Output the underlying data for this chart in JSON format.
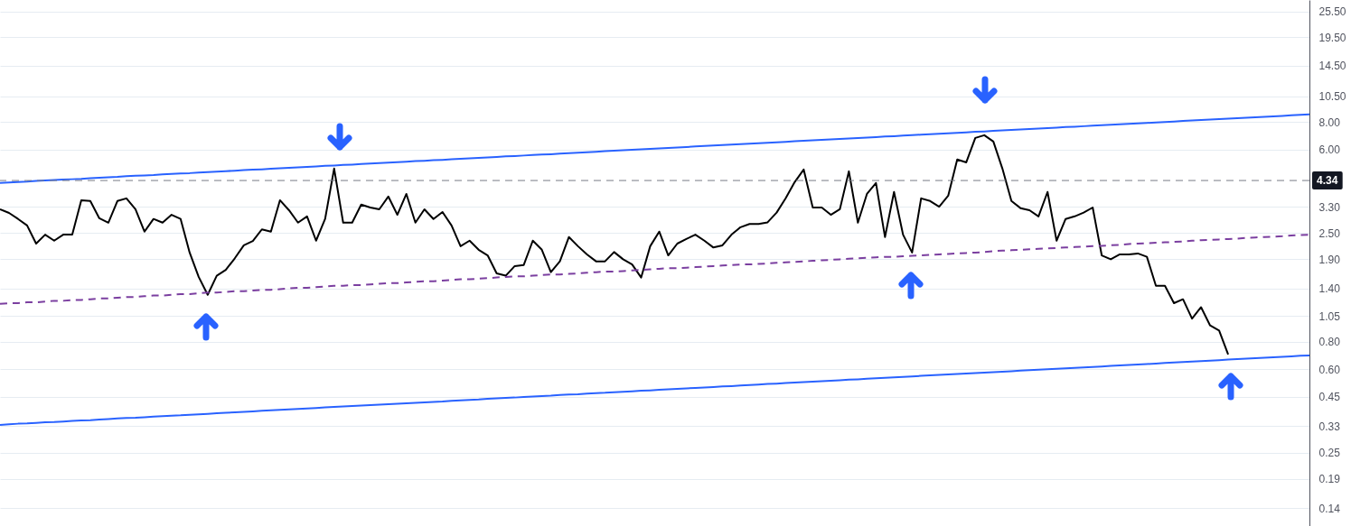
{
  "chart_data": {
    "type": "line",
    "log": "y",
    "grid": "y",
    "tick_labels": "y",
    "categories": [
      null,
      null,
      null,
      null,
      null,
      null,
      null,
      null,
      null,
      null,
      null,
      null,
      null,
      null,
      null,
      null,
      null,
      null,
      null,
      null,
      null,
      null,
      null,
      null,
      null,
      null,
      null,
      null,
      null,
      null,
      null,
      null,
      null,
      null,
      null,
      null,
      null,
      null,
      null,
      null,
      null,
      null,
      null,
      null,
      null,
      null,
      null,
      null,
      null,
      null,
      null,
      null,
      null,
      null,
      null,
      null,
      null,
      null,
      null,
      null,
      null,
      null,
      null,
      null,
      null,
      null,
      null,
      null,
      null,
      null,
      null,
      null,
      null,
      null,
      null,
      null,
      null,
      null,
      null,
      null,
      null,
      null,
      null,
      null,
      null,
      null,
      null,
      null,
      null,
      null,
      null,
      null,
      null,
      null,
      null,
      null,
      null,
      null,
      null,
      null,
      null,
      null,
      null,
      null,
      null,
      null,
      null,
      null,
      null,
      null,
      null,
      null,
      null,
      null,
      null,
      null,
      null,
      null,
      null,
      null,
      null,
      null,
      null,
      null,
      null,
      null,
      null,
      null,
      null,
      null,
      null,
      null,
      null,
      null,
      null,
      null,
      null,
      null,
      null,
      null,
      null,
      null,
      null,
      null,
      null,
      null
    ],
    "ylim": [
      0.116,
      28.8
    ],
    "yticks": [
      {
        "value": 25.5,
        "label": "25.50"
      },
      {
        "value": 19.5,
        "label": "19.50"
      },
      {
        "value": 14.5,
        "label": "14.50"
      },
      {
        "value": 10.5,
        "label": "10.50"
      },
      {
        "value": 8,
        "label": "8.00"
      },
      {
        "value": 6,
        "label": "6.00"
      },
      {
        "value": 3.3,
        "label": "3.30"
      },
      {
        "value": 2.5,
        "label": "2.50"
      },
      {
        "value": 1.9,
        "label": "1.90"
      },
      {
        "value": 1.4,
        "label": "1.40"
      },
      {
        "value": 1.05,
        "label": "1.05"
      },
      {
        "value": 0.8,
        "label": "0.80"
      },
      {
        "value": 0.6,
        "label": "0.60"
      },
      {
        "value": 0.45,
        "label": "0.45"
      },
      {
        "value": 0.33,
        "label": "0.33"
      },
      {
        "value": 0.25,
        "label": "0.25"
      },
      {
        "value": 0.19,
        "label": "0.19"
      },
      {
        "value": 0.14,
        "label": "0.14"
      }
    ],
    "series": [
      {
        "color": "#000000",
        "line_style": "solid",
        "values": [
          3.21,
          3.09,
          2.9,
          2.71,
          2.24,
          2.46,
          2.31,
          2.46,
          2.46,
          3.53,
          3.5,
          2.92,
          2.79,
          3.5,
          3.6,
          3.21,
          2.54,
          2.9,
          2.79,
          3.03,
          2.9,
          2.04,
          1.58,
          1.31,
          1.6,
          1.7,
          1.92,
          2.2,
          2.3,
          2.6,
          2.54,
          3.53,
          3.18,
          2.79,
          2.98,
          2.31,
          2.9,
          4.92,
          2.79,
          2.79,
          3.37,
          3.27,
          3.21,
          3.67,
          3.03,
          3.77,
          2.79,
          3.21,
          2.9,
          3.12,
          2.71,
          2.18,
          2.31,
          2.1,
          1.98,
          1.64,
          1.6,
          1.77,
          1.79,
          2.31,
          2.1,
          1.66,
          1.86,
          2.4,
          2.18,
          2.0,
          1.86,
          1.86,
          2.05,
          1.9,
          1.8,
          1.57,
          2.18,
          2.54,
          1.98,
          2.24,
          2.35,
          2.46,
          2.31,
          2.15,
          2.2,
          2.46,
          2.66,
          2.75,
          2.75,
          2.8,
          3.1,
          3.6,
          4.27,
          4.87,
          3.27,
          3.27,
          3.03,
          3.21,
          4.78,
          2.79,
          3.77,
          4.23,
          2.4,
          3.85,
          2.46,
          2.04,
          3.6,
          3.5,
          3.3,
          3.7,
          5.41,
          5.25,
          6.78,
          6.98,
          6.53,
          4.92,
          3.5,
          3.25,
          3.18,
          2.98,
          3.85,
          2.31,
          2.9,
          2.98,
          3.1,
          3.27,
          1.98,
          1.9,
          2.0,
          2.0,
          2.02,
          1.95,
          1.44,
          1.44,
          1.2,
          1.25,
          1.02,
          1.15,
          0.95,
          0.9,
          0.7,
          null,
          null,
          null,
          null,
          null,
          null,
          null,
          null,
          null
        ]
      },
      {
        "color": "#2962ff",
        "line_style": "solid",
        "values": [
          4.23,
          4.25,
          4.27,
          4.29,
          4.32,
          4.34,
          4.36,
          4.38,
          4.4,
          4.42,
          4.45,
          4.47,
          4.49,
          4.51,
          4.54,
          4.56,
          4.58,
          4.6,
          4.63,
          4.65,
          4.67,
          4.69,
          4.72,
          4.74,
          4.76,
          4.79,
          4.81,
          4.84,
          4.86,
          4.88,
          4.91,
          4.93,
          4.96,
          4.98,
          5.01,
          5.03,
          5.06,
          5.08,
          5.11,
          5.13,
          5.16,
          5.18,
          5.21,
          5.24,
          5.26,
          5.29,
          5.32,
          5.34,
          5.37,
          5.39,
          5.42,
          5.45,
          5.47,
          5.5,
          5.53,
          5.56,
          5.59,
          5.61,
          5.64,
          5.67,
          5.7,
          5.72,
          5.75,
          5.78,
          5.81,
          5.84,
          5.87,
          5.9,
          5.93,
          5.96,
          5.99,
          6.02,
          6.05,
          6.08,
          6.11,
          6.14,
          6.17,
          6.2,
          6.23,
          6.26,
          6.29,
          6.32,
          6.35,
          6.39,
          6.42,
          6.45,
          6.48,
          6.51,
          6.55,
          6.58,
          6.61,
          6.64,
          6.68,
          6.71,
          6.74,
          6.78,
          6.81,
          6.84,
          6.88,
          6.91,
          6.95,
          6.98,
          7.02,
          7.05,
          7.09,
          7.12,
          7.16,
          7.19,
          7.23,
          7.26,
          7.3,
          7.34,
          7.37,
          7.41,
          7.45,
          7.48,
          7.52,
          7.56,
          7.6,
          7.63,
          7.67,
          7.71,
          7.75,
          7.79,
          7.83,
          7.86,
          7.9,
          7.94,
          7.98,
          8.02,
          8.06,
          8.1,
          8.14,
          8.18,
          8.22,
          8.26,
          8.31,
          8.35,
          8.39,
          8.43,
          8.47,
          8.51,
          8.55,
          8.6,
          8.64,
          8.68
        ]
      },
      {
        "color": "#7b3fa0",
        "line_style": "dashed",
        "values": [
          1.19,
          1.2,
          1.2,
          1.21,
          1.21,
          1.22,
          1.23,
          1.23,
          1.24,
          1.24,
          1.25,
          1.26,
          1.26,
          1.27,
          1.28,
          1.28,
          1.29,
          1.3,
          1.3,
          1.31,
          1.32,
          1.32,
          1.33,
          1.34,
          1.34,
          1.35,
          1.36,
          1.36,
          1.37,
          1.38,
          1.38,
          1.39,
          1.4,
          1.41,
          1.41,
          1.42,
          1.43,
          1.44,
          1.44,
          1.45,
          1.45,
          1.46,
          1.47,
          1.48,
          1.48,
          1.49,
          1.5,
          1.51,
          1.51,
          1.52,
          1.53,
          1.54,
          1.54,
          1.55,
          1.56,
          1.57,
          1.58,
          1.59,
          1.59,
          1.6,
          1.61,
          1.62,
          1.62,
          1.63,
          1.64,
          1.65,
          1.66,
          1.67,
          1.67,
          1.68,
          1.69,
          1.7,
          1.71,
          1.72,
          1.73,
          1.73,
          1.74,
          1.75,
          1.76,
          1.77,
          1.78,
          1.79,
          1.8,
          1.8,
          1.81,
          1.82,
          1.83,
          1.84,
          1.85,
          1.86,
          1.87,
          1.88,
          1.89,
          1.9,
          1.91,
          1.92,
          1.93,
          1.94,
          1.95,
          1.95,
          1.96,
          1.97,
          1.98,
          1.99,
          2.0,
          2.01,
          2.02,
          2.03,
          2.04,
          2.05,
          2.07,
          2.08,
          2.09,
          2.1,
          2.11,
          2.12,
          2.13,
          2.14,
          2.15,
          2.16,
          2.17,
          2.18,
          2.19,
          2.2,
          2.21,
          2.23,
          2.24,
          2.25,
          2.26,
          2.27,
          2.28,
          2.29,
          2.31,
          2.32,
          2.33,
          2.34,
          2.35,
          2.36,
          2.38,
          2.39,
          2.4,
          2.41,
          2.42,
          2.44,
          2.45,
          2.46
        ]
      },
      {
        "color": "#2962ff",
        "line_style": "solid",
        "values": [
          0.335,
          0.337,
          0.339,
          0.34,
          0.342,
          0.344,
          0.345,
          0.347,
          0.349,
          0.351,
          0.352,
          0.354,
          0.356,
          0.358,
          0.36,
          0.361,
          0.363,
          0.365,
          0.367,
          0.369,
          0.37,
          0.372,
          0.374,
          0.376,
          0.378,
          0.38,
          0.382,
          0.384,
          0.386,
          0.388,
          0.39,
          0.392,
          0.394,
          0.396,
          0.398,
          0.4,
          0.402,
          0.404,
          0.406,
          0.408,
          0.41,
          0.412,
          0.414,
          0.416,
          0.418,
          0.42,
          0.422,
          0.424,
          0.426,
          0.428,
          0.431,
          0.433,
          0.435,
          0.437,
          0.44,
          0.442,
          0.444,
          0.446,
          0.449,
          0.451,
          0.453,
          0.455,
          0.458,
          0.46,
          0.462,
          0.465,
          0.467,
          0.469,
          0.472,
          0.474,
          0.476,
          0.479,
          0.481,
          0.484,
          0.486,
          0.488,
          0.491,
          0.493,
          0.496,
          0.498,
          0.501,
          0.503,
          0.506,
          0.508,
          0.511,
          0.514,
          0.516,
          0.519,
          0.522,
          0.524,
          0.527,
          0.529,
          0.532,
          0.535,
          0.538,
          0.54,
          0.543,
          0.546,
          0.549,
          0.551,
          0.554,
          0.557,
          0.56,
          0.563,
          0.565,
          0.568,
          0.571,
          0.574,
          0.577,
          0.579,
          0.582,
          0.585,
          0.588,
          0.591,
          0.594,
          0.597,
          0.6,
          0.603,
          0.606,
          0.609,
          0.612,
          0.615,
          0.618,
          0.622,
          0.625,
          0.628,
          0.631,
          0.634,
          0.637,
          0.641,
          0.644,
          0.647,
          0.65,
          0.654,
          0.657,
          0.66,
          0.664,
          0.667,
          0.67,
          0.674,
          0.677,
          0.68,
          0.684,
          0.687,
          0.691,
          0.694
        ]
      }
    ],
    "ref_lines": [
      {
        "axis": "y",
        "value": 4.34,
        "label": "4.34",
        "color": "#787b86",
        "line_style": "dashed"
      }
    ]
  }
}
